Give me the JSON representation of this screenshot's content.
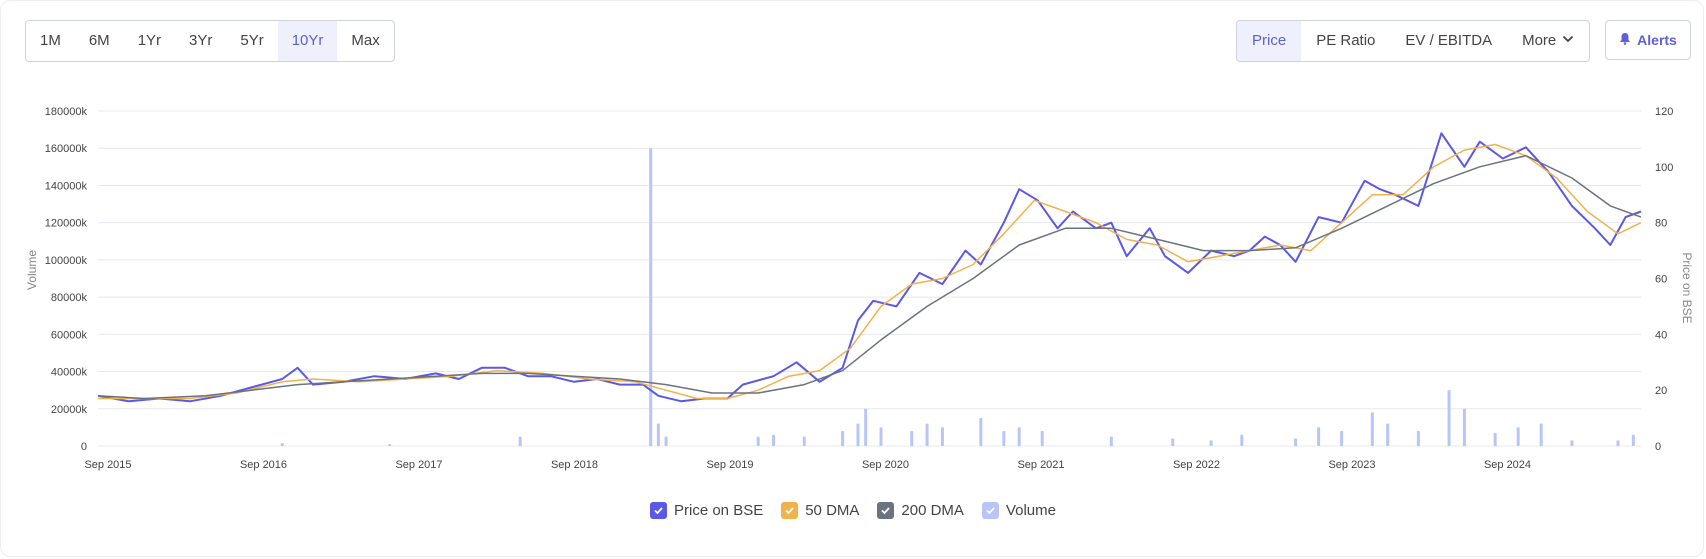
{
  "toolbar": {
    "ranges": [
      "1M",
      "6M",
      "1Yr",
      "3Yr",
      "5Yr",
      "10Yr",
      "Max"
    ],
    "active_range": "10Yr",
    "metrics": [
      "Price",
      "PE Ratio",
      "EV / EBITDA"
    ],
    "active_metric": "Price",
    "more_label": "More",
    "more_icon": "chevron-down-icon",
    "alerts_label": "Alerts",
    "alerts_icon": "bell-icon"
  },
  "colors": {
    "price": "#5b58e6",
    "dma50": "#f0b24a",
    "dma200": "#6b7280",
    "volume": "#b8c6f7",
    "accent": "#5f5fd6"
  },
  "chart_data": {
    "type": "line",
    "x_ticks": [
      "Sep 2015",
      "Sep 2016",
      "Sep 2017",
      "Sep 2018",
      "Sep 2019",
      "Sep 2020",
      "Sep 2021",
      "Sep 2022",
      "Sep 2023",
      "Sep 2024"
    ],
    "xlim": [
      2015.6,
      2025.65
    ],
    "left_axis": {
      "label": "Volume",
      "ticks": [
        "0",
        "20000k",
        "40000k",
        "60000k",
        "80000k",
        "100000k",
        "120000k",
        "140000k",
        "160000k",
        "180000k"
      ],
      "ylim": [
        0,
        180000
      ]
    },
    "right_axis": {
      "label": "Price on BSE",
      "ticks": [
        "0",
        "20",
        "40",
        "60",
        "80",
        "100",
        "120"
      ],
      "ylim": [
        0,
        120
      ]
    },
    "grid": true,
    "legend_position": "bottom-center",
    "legend": [
      "Price on BSE",
      "50 DMA",
      "200 DMA",
      "Volume"
    ],
    "series": [
      {
        "name": "Price on BSE",
        "axis": "right",
        "points": [
          [
            2015.6,
            18
          ],
          [
            2015.8,
            16
          ],
          [
            2016.0,
            17
          ],
          [
            2016.2,
            16
          ],
          [
            2016.4,
            18
          ],
          [
            2016.6,
            21
          ],
          [
            2016.8,
            24
          ],
          [
            2016.9,
            28
          ],
          [
            2017.0,
            22
          ],
          [
            2017.2,
            23
          ],
          [
            2017.4,
            25
          ],
          [
            2017.6,
            24
          ],
          [
            2017.8,
            26
          ],
          [
            2017.95,
            24
          ],
          [
            2018.1,
            28
          ],
          [
            2018.25,
            28
          ],
          [
            2018.4,
            25
          ],
          [
            2018.55,
            25
          ],
          [
            2018.7,
            23
          ],
          [
            2018.85,
            24
          ],
          [
            2019.0,
            22
          ],
          [
            2019.15,
            22
          ],
          [
            2019.25,
            18
          ],
          [
            2019.4,
            16
          ],
          [
            2019.55,
            17
          ],
          [
            2019.7,
            17
          ],
          [
            2019.8,
            22
          ],
          [
            2020.0,
            25
          ],
          [
            2020.15,
            30
          ],
          [
            2020.3,
            23
          ],
          [
            2020.45,
            28
          ],
          [
            2020.55,
            45
          ],
          [
            2020.65,
            52
          ],
          [
            2020.8,
            50
          ],
          [
            2020.95,
            62
          ],
          [
            2021.1,
            58
          ],
          [
            2021.25,
            70
          ],
          [
            2021.35,
            65
          ],
          [
            2021.5,
            80
          ],
          [
            2021.6,
            92
          ],
          [
            2021.72,
            88
          ],
          [
            2021.85,
            78
          ],
          [
            2021.95,
            84
          ],
          [
            2022.1,
            78
          ],
          [
            2022.2,
            80
          ],
          [
            2022.3,
            68
          ],
          [
            2022.45,
            78
          ],
          [
            2022.55,
            68
          ],
          [
            2022.7,
            62
          ],
          [
            2022.85,
            70
          ],
          [
            2023.0,
            68
          ],
          [
            2023.1,
            70
          ],
          [
            2023.2,
            75
          ],
          [
            2023.3,
            72
          ],
          [
            2023.4,
            66
          ],
          [
            2023.55,
            82
          ],
          [
            2023.7,
            80
          ],
          [
            2023.85,
            95
          ],
          [
            2023.95,
            92
          ],
          [
            2024.05,
            90
          ],
          [
            2024.2,
            86
          ],
          [
            2024.35,
            112
          ],
          [
            2024.5,
            100
          ],
          [
            2024.6,
            109
          ],
          [
            2024.75,
            103
          ],
          [
            2024.9,
            107
          ],
          [
            2025.05,
            98
          ],
          [
            2025.2,
            86
          ],
          [
            2025.35,
            78
          ],
          [
            2025.45,
            72
          ],
          [
            2025.55,
            82
          ],
          [
            2025.65,
            84
          ]
        ]
      },
      {
        "name": "50 DMA",
        "axis": "right",
        "points": [
          [
            2015.6,
            17
          ],
          [
            2015.9,
            17
          ],
          [
            2016.2,
            17
          ],
          [
            2016.5,
            19
          ],
          [
            2016.8,
            23
          ],
          [
            2017.0,
            24
          ],
          [
            2017.3,
            23
          ],
          [
            2017.6,
            24
          ],
          [
            2017.9,
            25
          ],
          [
            2018.2,
            27
          ],
          [
            2018.5,
            26
          ],
          [
            2018.8,
            24
          ],
          [
            2019.1,
            23
          ],
          [
            2019.3,
            20
          ],
          [
            2019.5,
            17
          ],
          [
            2019.7,
            17
          ],
          [
            2019.9,
            20
          ],
          [
            2020.1,
            25
          ],
          [
            2020.3,
            27
          ],
          [
            2020.5,
            35
          ],
          [
            2020.7,
            50
          ],
          [
            2020.9,
            58
          ],
          [
            2021.1,
            60
          ],
          [
            2021.3,
            65
          ],
          [
            2021.5,
            76
          ],
          [
            2021.7,
            88
          ],
          [
            2021.9,
            84
          ],
          [
            2022.1,
            80
          ],
          [
            2022.3,
            74
          ],
          [
            2022.5,
            72
          ],
          [
            2022.7,
            66
          ],
          [
            2022.9,
            68
          ],
          [
            2023.1,
            70
          ],
          [
            2023.3,
            72
          ],
          [
            2023.5,
            70
          ],
          [
            2023.7,
            80
          ],
          [
            2023.9,
            90
          ],
          [
            2024.1,
            90
          ],
          [
            2024.3,
            100
          ],
          [
            2024.5,
            106
          ],
          [
            2024.7,
            108
          ],
          [
            2024.9,
            104
          ],
          [
            2025.1,
            96
          ],
          [
            2025.3,
            84
          ],
          [
            2025.5,
            76
          ],
          [
            2025.65,
            80
          ]
        ]
      },
      {
        "name": "200 DMA",
        "axis": "right",
        "points": [
          [
            2015.6,
            18
          ],
          [
            2015.9,
            17
          ],
          [
            2016.3,
            18
          ],
          [
            2016.6,
            20
          ],
          [
            2016.9,
            22
          ],
          [
            2017.2,
            23
          ],
          [
            2017.5,
            24
          ],
          [
            2017.8,
            25
          ],
          [
            2018.1,
            26
          ],
          [
            2018.4,
            26
          ],
          [
            2018.7,
            25
          ],
          [
            2019.0,
            24
          ],
          [
            2019.3,
            22
          ],
          [
            2019.6,
            19
          ],
          [
            2019.9,
            19
          ],
          [
            2020.2,
            22
          ],
          [
            2020.45,
            27
          ],
          [
            2020.7,
            38
          ],
          [
            2021.0,
            50
          ],
          [
            2021.3,
            60
          ],
          [
            2021.6,
            72
          ],
          [
            2021.9,
            78
          ],
          [
            2022.2,
            78
          ],
          [
            2022.5,
            74
          ],
          [
            2022.8,
            70
          ],
          [
            2023.1,
            70
          ],
          [
            2023.4,
            71
          ],
          [
            2023.7,
            78
          ],
          [
            2024.0,
            86
          ],
          [
            2024.3,
            94
          ],
          [
            2024.6,
            100
          ],
          [
            2024.9,
            104
          ],
          [
            2025.2,
            96
          ],
          [
            2025.45,
            86
          ],
          [
            2025.65,
            82
          ]
        ]
      },
      {
        "name": "Volume",
        "axis": "left",
        "type": "bar",
        "points": [
          [
            2016.8,
            1500
          ],
          [
            2017.5,
            1000
          ],
          [
            2018.35,
            5000
          ],
          [
            2019.2,
            160000
          ],
          [
            2019.25,
            12000
          ],
          [
            2019.3,
            5000
          ],
          [
            2019.9,
            5000
          ],
          [
            2020.0,
            6000
          ],
          [
            2020.2,
            5000
          ],
          [
            2020.45,
            8000
          ],
          [
            2020.55,
            12000
          ],
          [
            2020.6,
            20000
          ],
          [
            2020.7,
            10000
          ],
          [
            2020.9,
            8000
          ],
          [
            2021.0,
            12000
          ],
          [
            2021.1,
            10000
          ],
          [
            2021.35,
            15000
          ],
          [
            2021.5,
            8000
          ],
          [
            2021.6,
            10000
          ],
          [
            2021.75,
            8000
          ],
          [
            2022.2,
            5000
          ],
          [
            2022.6,
            4000
          ],
          [
            2022.85,
            3000
          ],
          [
            2023.05,
            6000
          ],
          [
            2023.4,
            4000
          ],
          [
            2023.55,
            10000
          ],
          [
            2023.7,
            8000
          ],
          [
            2023.9,
            18000
          ],
          [
            2024.0,
            12000
          ],
          [
            2024.2,
            8000
          ],
          [
            2024.4,
            30000
          ],
          [
            2024.5,
            20000
          ],
          [
            2024.7,
            7000
          ],
          [
            2024.85,
            10000
          ],
          [
            2025.0,
            12000
          ],
          [
            2025.2,
            3000
          ],
          [
            2025.5,
            3000
          ],
          [
            2025.6,
            6000
          ]
        ]
      }
    ]
  }
}
